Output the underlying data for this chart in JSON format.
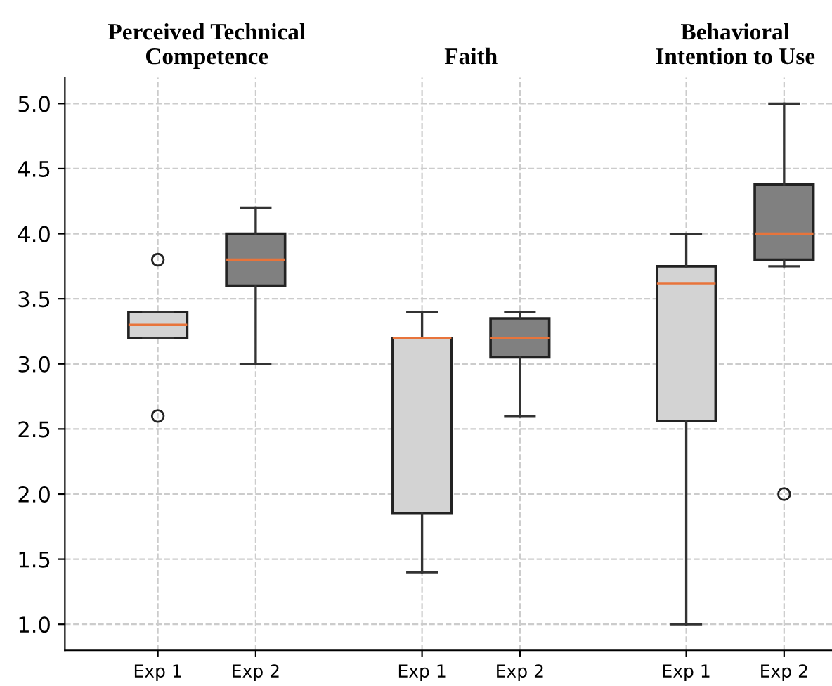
{
  "chart_data": {
    "type": "box",
    "categories": [
      "Exp 1",
      "Exp 2",
      "Exp 1",
      "Exp 2",
      "Exp 1",
      "Exp 2"
    ],
    "colors": [
      "#d3d3d3",
      "#808080",
      "#d3d3d3",
      "#808080",
      "#d3d3d3",
      "#808080"
    ],
    "boxes": [
      {
        "low": 3.2,
        "q1": 3.2,
        "median": 3.3,
        "q3": 3.4,
        "high": 3.4,
        "outliers": [
          3.8,
          2.6
        ]
      },
      {
        "low": 3.0,
        "q1": 3.6,
        "median": 3.8,
        "q3": 4.0,
        "high": 4.2
      },
      {
        "low": 1.4,
        "q1": 1.85,
        "median": 3.2,
        "q3": 3.2,
        "high": 3.4
      },
      {
        "low": 2.6,
        "q1": 3.05,
        "median": 3.2,
        "q3": 3.35,
        "high": 3.4
      },
      {
        "low": 1.0,
        "q1": 2.56,
        "median": 3.62,
        "q3": 3.75,
        "high": 4.0
      },
      {
        "low": 3.75,
        "q1": 3.8,
        "median": 4.0,
        "q3": 4.38,
        "high": 5.0,
        "outliers": [
          2.0
        ]
      }
    ],
    "annotations": [
      "Perceived Technical\nCompetence",
      "Faith",
      "Behavioral\nIntention to Use"
    ],
    "ylim": [
      0.8,
      5.2
    ],
    "yticks": [
      {
        "value": 1,
        "label": "1.0"
      },
      1.5,
      {
        "value": 2,
        "label": "2.0"
      },
      2.5,
      {
        "value": 3,
        "label": "3.0"
      },
      3.5,
      {
        "value": 4,
        "label": "4.0"
      },
      4.5,
      {
        "value": 5,
        "label": "5.0"
      }
    ],
    "grid": true
  }
}
